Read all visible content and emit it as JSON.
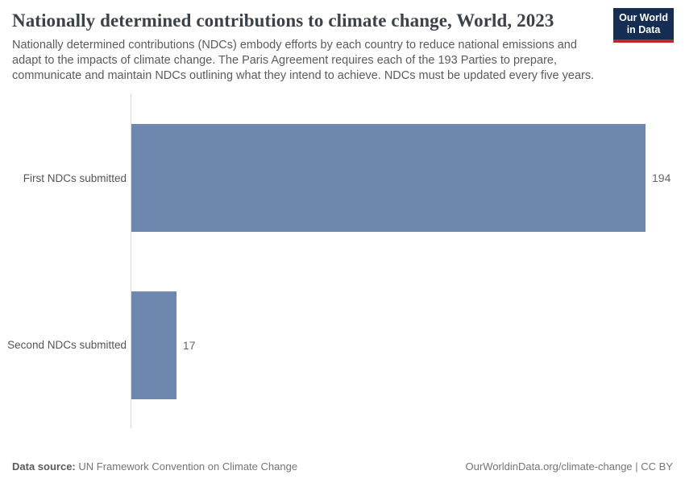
{
  "logo": {
    "line1": "Our World",
    "line2": "in Data"
  },
  "header": {
    "title": "Nationally determined contributions to climate change, World, 2023",
    "subtitle": "Nationally determined contributions (NDCs) embody efforts by each country to reduce national emissions and adapt to the impacts of climate change. The Paris Agreement requires each of the 193 Parties to prepare, communicate and maintain NDCs outlining what they intend to achieve. NDCs must be updated every five years."
  },
  "chart_data": {
    "type": "bar",
    "orientation": "horizontal",
    "title": "Nationally determined contributions to climate change, World, 2023",
    "categories": [
      "First NDCs submitted",
      "Second NDCs submitted"
    ],
    "values": [
      194,
      17
    ],
    "value_labels": [
      "194",
      "17"
    ],
    "xlabel": "",
    "ylabel": "",
    "xlim": [
      0,
      194
    ],
    "grid": false,
    "legend": "none",
    "bar_color": "#6e87ae"
  },
  "footer": {
    "datasource_label": "Data source:",
    "datasource_value": "UN Framework Convention on Climate Change",
    "credit": "OurWorldinData.org/climate-change | CC BY"
  },
  "colors": {
    "bar": "#6e87ae",
    "title_text": "#3c4248",
    "subtitle_text": "#5b5b5b",
    "category_label": "#555555",
    "value_label": "#666666",
    "axis_line": "#d9d9d9",
    "logo_background": "#142d50",
    "logo_stripe": "#c0272d",
    "footer_text": "#757575"
  }
}
